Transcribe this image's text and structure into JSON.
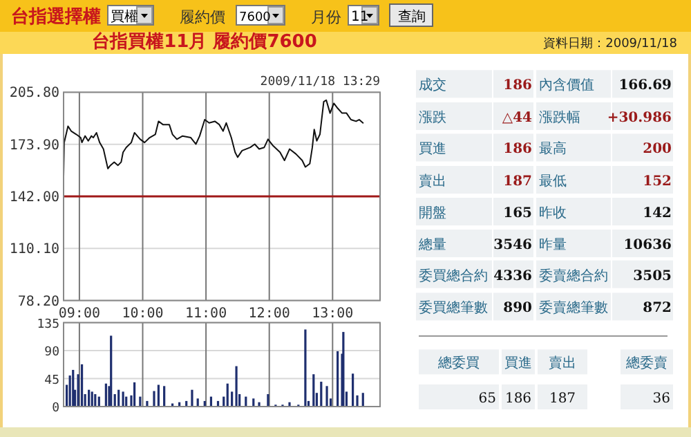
{
  "chart_data": [
    {
      "type": "other",
      "annotations": [
        "台指選擇權",
        "買權",
        "履約價",
        "7600",
        "月份",
        "11",
        "查詢",
        "資料日期：2009/11/18"
      ]
    },
    {
      "type": "line",
      "title": "台指買權11月 履約價7600",
      "annotations": [
        "2009/11/18 13:29"
      ],
      "color": "#111111",
      "grid": true,
      "x": [
        8.75,
        8.76,
        8.82,
        8.87,
        8.95,
        9.02,
        9.04,
        9.09,
        9.14,
        9.19,
        9.22,
        9.27,
        9.32,
        9.38,
        9.45,
        9.49,
        9.55,
        9.61,
        9.66,
        9.69,
        9.74,
        9.82,
        9.87,
        9.96,
        10.03,
        10.11,
        10.2,
        10.25,
        10.32,
        10.42,
        10.47,
        10.54,
        10.63,
        10.76,
        10.84,
        10.9,
        10.98,
        11.05,
        11.14,
        11.21,
        11.27,
        11.32,
        11.4,
        11.46,
        11.5,
        11.57,
        11.7,
        11.77,
        11.84,
        11.92,
        11.98,
        12.06,
        12.17,
        12.24,
        12.32,
        12.42,
        12.52,
        12.57,
        12.64,
        12.68,
        12.71,
        12.75,
        12.8,
        12.86,
        12.9,
        12.96,
        13.02,
        13.08,
        13.15,
        13.22,
        13.29,
        13.37,
        13.42,
        13.48
      ],
      "values": [
        154,
        175,
        185,
        182,
        180,
        178,
        175,
        179,
        176,
        179,
        178,
        181,
        175,
        171,
        159,
        161,
        163,
        161,
        163,
        169,
        172,
        175,
        181,
        177,
        175,
        178,
        180,
        188,
        186,
        186,
        180,
        177,
        179,
        178,
        174,
        179,
        189,
        187,
        188,
        186,
        182,
        187,
        178,
        169,
        166,
        170,
        172,
        174,
        171,
        172,
        177,
        173,
        169,
        164,
        171,
        168,
        164,
        160,
        162,
        172,
        183,
        176,
        180,
        200,
        201,
        193,
        199,
        196,
        193,
        193,
        189,
        188,
        189,
        187
      ],
      "xlim": [
        8.75,
        13.75
      ],
      "ylim": [
        78.2,
        205.8
      ],
      "xticks": [
        {
          "value": 9,
          "label": "09:00"
        },
        {
          "value": 10,
          "label": "10:00"
        },
        {
          "value": 11,
          "label": "11:00"
        },
        {
          "value": 12,
          "label": "12:00"
        },
        {
          "value": 13,
          "label": "13:00"
        }
      ],
      "yticks": [
        {
          "value": 78.2,
          "label": "78.20"
        },
        {
          "value": 110.1,
          "label": "110.10"
        },
        {
          "value": 142,
          "label": "142.00"
        },
        {
          "value": 173.9,
          "label": "173.90"
        },
        {
          "value": 205.8,
          "label": "205.80"
        }
      ],
      "ref_lines": [
        {
          "axis": "y",
          "value": 142,
          "color": "#a01818"
        }
      ]
    },
    {
      "type": "bar",
      "color": "#1f2f6f",
      "grid": true,
      "tick_labels": "y",
      "x": [
        8.8,
        8.85,
        8.9,
        8.93,
        8.98,
        9.04,
        9.09,
        9.15,
        9.2,
        9.25,
        9.31,
        9.42,
        9.47,
        9.5,
        9.56,
        9.62,
        9.69,
        9.74,
        9.82,
        9.87,
        9.96,
        10.07,
        10.18,
        10.25,
        10.34,
        10.47,
        10.58,
        10.69,
        10.78,
        10.87,
        10.98,
        11.08,
        11.19,
        11.28,
        11.34,
        11.41,
        11.48,
        11.53,
        11.63,
        11.75,
        11.84,
        11.98,
        12.1,
        12.21,
        12.32,
        12.46,
        12.57,
        12.62,
        12.7,
        12.75,
        12.82,
        12.91,
        12.97,
        13.08,
        13.15,
        13.17,
        13.22,
        13.32,
        13.39,
        13.48
      ],
      "values": [
        35,
        50,
        59,
        27,
        52,
        68,
        20,
        27,
        24,
        20,
        16,
        37,
        33,
        114,
        20,
        27,
        24,
        16,
        18,
        39,
        16,
        9,
        25,
        35,
        33,
        5,
        7,
        9,
        27,
        13,
        9,
        16,
        9,
        16,
        37,
        24,
        65,
        20,
        16,
        13,
        7,
        20,
        3,
        3,
        7,
        3,
        124,
        9,
        52,
        22,
        40,
        33,
        13,
        89,
        85,
        120,
        24,
        53,
        18,
        22
      ],
      "xlim": [
        8.75,
        13.75
      ],
      "ylim": [
        0,
        135
      ],
      "xticks": [
        9,
        10,
        11,
        12,
        13
      ],
      "yticks": [
        0,
        45,
        90,
        135
      ]
    },
    {
      "type": "other",
      "annotations": [
        "成交",
        "186",
        "內含價值",
        "166.69",
        "漲跌",
        "△44",
        "漲跌幅",
        "+30.986",
        "買進",
        "186",
        "最高",
        "200",
        "賣出",
        "187",
        "最低",
        "152",
        "開盤",
        "165",
        "昨收",
        "142",
        "總量",
        "3546",
        "昨量",
        "10636",
        "委買總合約",
        "4336",
        "委賣總合約",
        "3505",
        "委買總筆數",
        "890",
        "委賣總筆數",
        "872",
        "總委買",
        "買進",
        "賣出",
        "總委賣",
        "65",
        "186",
        "187",
        "36"
      ]
    }
  ]
}
